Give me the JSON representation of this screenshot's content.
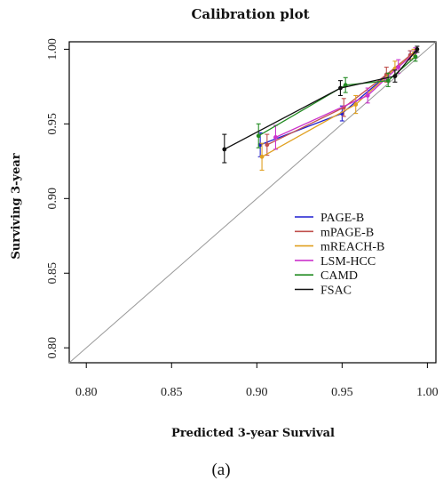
{
  "chart_data": {
    "type": "line",
    "title": "Calibration plot",
    "xlabel": "Predicted 3-year Survival",
    "ylabel": "Surviving 3-year",
    "xlim": [
      0.79,
      1.005
    ],
    "ylim": [
      0.79,
      1.005
    ],
    "xticks": [
      "0.80",
      "0.85",
      "0.90",
      "0.95",
      "1.00"
    ],
    "yticks": [
      "0.80",
      "0.85",
      "0.90",
      "0.95",
      "1.00"
    ],
    "grid": false,
    "legend": "right",
    "reference_line": "diagonal",
    "series": [
      {
        "name": "PAGE-B",
        "color": "#1f1fd0",
        "points": [
          {
            "x": 0.902,
            "y": 0.936,
            "lo": 0.928,
            "hi": 0.944
          },
          {
            "x": 0.95,
            "y": 0.957,
            "lo": 0.952,
            "hi": 0.962
          },
          {
            "x": 0.99,
            "y": 0.996,
            "lo": 0.993,
            "hi": 0.999
          }
        ]
      },
      {
        "name": "mPAGE-B",
        "color": "#c0504d",
        "points": [
          {
            "x": 0.906,
            "y": 0.936,
            "lo": 0.929,
            "hi": 0.943
          },
          {
            "x": 0.951,
            "y": 0.961,
            "lo": 0.955,
            "hi": 0.967
          },
          {
            "x": 0.976,
            "y": 0.983,
            "lo": 0.978,
            "hi": 0.988
          },
          {
            "x": 0.99,
            "y": 0.996,
            "lo": 0.993,
            "hi": 0.999
          }
        ]
      },
      {
        "name": "mREACH-B",
        "color": "#e0a020",
        "points": [
          {
            "x": 0.903,
            "y": 0.928,
            "lo": 0.919,
            "hi": 0.937
          },
          {
            "x": 0.958,
            "y": 0.963,
            "lo": 0.957,
            "hi": 0.969
          },
          {
            "x": 0.981,
            "y": 0.987,
            "lo": 0.982,
            "hi": 0.992
          },
          {
            "x": 0.992,
            "y": 0.997,
            "lo": 0.994,
            "hi": 1.0
          }
        ]
      },
      {
        "name": "LSM-HCC",
        "color": "#cc33cc",
        "points": [
          {
            "x": 0.911,
            "y": 0.941,
            "lo": 0.933,
            "hi": 0.949
          },
          {
            "x": 0.965,
            "y": 0.969,
            "lo": 0.964,
            "hi": 0.974
          },
          {
            "x": 0.983,
            "y": 0.988,
            "lo": 0.984,
            "hi": 0.993
          },
          {
            "x": 0.993,
            "y": 0.998,
            "lo": 0.995,
            "hi": 1.001
          }
        ]
      },
      {
        "name": "CAMD",
        "color": "#228b22",
        "points": [
          {
            "x": 0.901,
            "y": 0.942,
            "lo": 0.934,
            "hi": 0.95
          },
          {
            "x": 0.952,
            "y": 0.976,
            "lo": 0.971,
            "hi": 0.981
          },
          {
            "x": 0.977,
            "y": 0.979,
            "lo": 0.975,
            "hi": 0.984
          },
          {
            "x": 0.993,
            "y": 0.995,
            "lo": 0.992,
            "hi": 0.998
          }
        ]
      },
      {
        "name": "FSAC",
        "color": "#111111",
        "points": [
          {
            "x": 0.881,
            "y": 0.933,
            "lo": 0.924,
            "hi": 0.943
          },
          {
            "x": 0.949,
            "y": 0.974,
            "lo": 0.969,
            "hi": 0.979
          },
          {
            "x": 0.981,
            "y": 0.982,
            "lo": 0.978,
            "hi": 0.986
          },
          {
            "x": 0.994,
            "y": 1.0,
            "lo": 0.998,
            "hi": 1.002
          }
        ]
      }
    ]
  },
  "caption": "(a)"
}
